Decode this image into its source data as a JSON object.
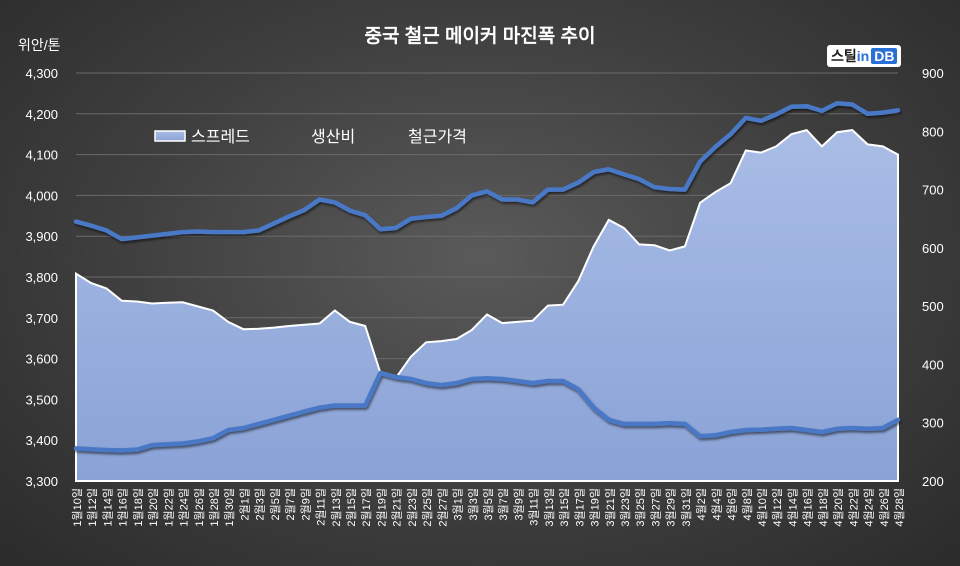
{
  "brand": {
    "part1": "스틸",
    "part2": "in",
    "part3": "DB"
  },
  "chart_data": {
    "type": "line",
    "title": "중국 철근 메이커 마진폭 추이",
    "unit_label": "위안/톤",
    "y_left": {
      "min": 3300,
      "max": 4300,
      "ticks": [
        "3,300",
        "3,400",
        "3,500",
        "3,600",
        "3,700",
        "3,800",
        "3,900",
        "4,000",
        "4,100",
        "4,200",
        "4,300"
      ]
    },
    "y_right": {
      "min": 200,
      "max": 900,
      "ticks": [
        "200",
        "300",
        "400",
        "500",
        "600",
        "700",
        "800",
        "900"
      ]
    },
    "legend": {
      "placement": "upper-left",
      "items": [
        "스프레드",
        "생산비",
        "철근가격"
      ]
    },
    "x_labels": [
      "1월10일",
      "1월12일",
      "1월14일",
      "1월16일",
      "1월18일",
      "1월20일",
      "1월22일",
      "1월24일",
      "1월26일",
      "1월28일",
      "1월30일",
      "2월1일",
      "2월3일",
      "2월5일",
      "2월7일",
      "2월9일",
      "2월11일",
      "2월13일",
      "2월15일",
      "2월17일",
      "2월19일",
      "2월21일",
      "2월23일",
      "2월25일",
      "2월27일",
      "3월1일",
      "3월3일",
      "3월5일",
      "3월7일",
      "3월9일",
      "3월11일",
      "3월13일",
      "3월15일",
      "3월17일",
      "3월19일",
      "3월21일",
      "3월23일",
      "3월25일",
      "3월27일",
      "3월29일",
      "3월31일",
      "4월2일",
      "4월4일",
      "4월6일",
      "4월8일",
      "4월10일",
      "4월12일",
      "4월14일",
      "4월16일",
      "4월18일",
      "4월20일",
      "4월22일",
      "4월24일",
      "4월26일",
      "4월28일"
    ],
    "series": [
      {
        "name": "스프레드",
        "axis": "left",
        "style": "area",
        "values": [
          3808,
          3785,
          3772,
          3742,
          3740,
          3735,
          3737,
          3738,
          3728,
          3718,
          3690,
          3672,
          3673,
          3676,
          3680,
          3683,
          3686,
          3718,
          3690,
          3680,
          3565,
          3552,
          3605,
          3640,
          3643,
          3648,
          3670,
          3708,
          3687,
          3690,
          3693,
          3730,
          3732,
          3790,
          3875,
          3940,
          3920,
          3880,
          3878,
          3865,
          3875,
          3982,
          4008,
          4030,
          4110,
          4105,
          4120,
          4150,
          4160,
          4120,
          4155,
          4160,
          4125,
          4120,
          4100
        ]
      },
      {
        "name": "생산비",
        "axis": "left",
        "style": "line",
        "values": [
          3380,
          3378,
          3376,
          3375,
          3377,
          3388,
          3390,
          3392,
          3397,
          3405,
          3425,
          3430,
          3440,
          3450,
          3460,
          3470,
          3480,
          3485,
          3485,
          3485,
          3565,
          3555,
          3550,
          3540,
          3535,
          3540,
          3550,
          3552,
          3550,
          3545,
          3540,
          3545,
          3545,
          3525,
          3480,
          3450,
          3440,
          3440,
          3440,
          3442,
          3440,
          3410,
          3412,
          3420,
          3425,
          3426,
          3428,
          3430,
          3425,
          3420,
          3428,
          3430,
          3428,
          3430,
          3450
        ]
      },
      {
        "name": "철근가격",
        "axis": "right",
        "style": "line",
        "values": [
          645,
          638,
          630,
          615,
          618,
          621,
          624,
          627,
          628,
          627,
          627,
          627,
          630,
          642,
          654,
          665,
          683,
          678,
          664,
          656,
          632,
          634,
          650,
          653,
          655,
          668,
          690,
          697,
          683,
          683,
          678,
          700,
          700,
          712,
          730,
          735,
          726,
          718,
          704,
          701,
          700,
          748,
          773,
          795,
          823,
          818,
          829,
          842,
          843,
          835,
          848,
          846,
          830,
          832,
          836
        ]
      }
    ]
  }
}
